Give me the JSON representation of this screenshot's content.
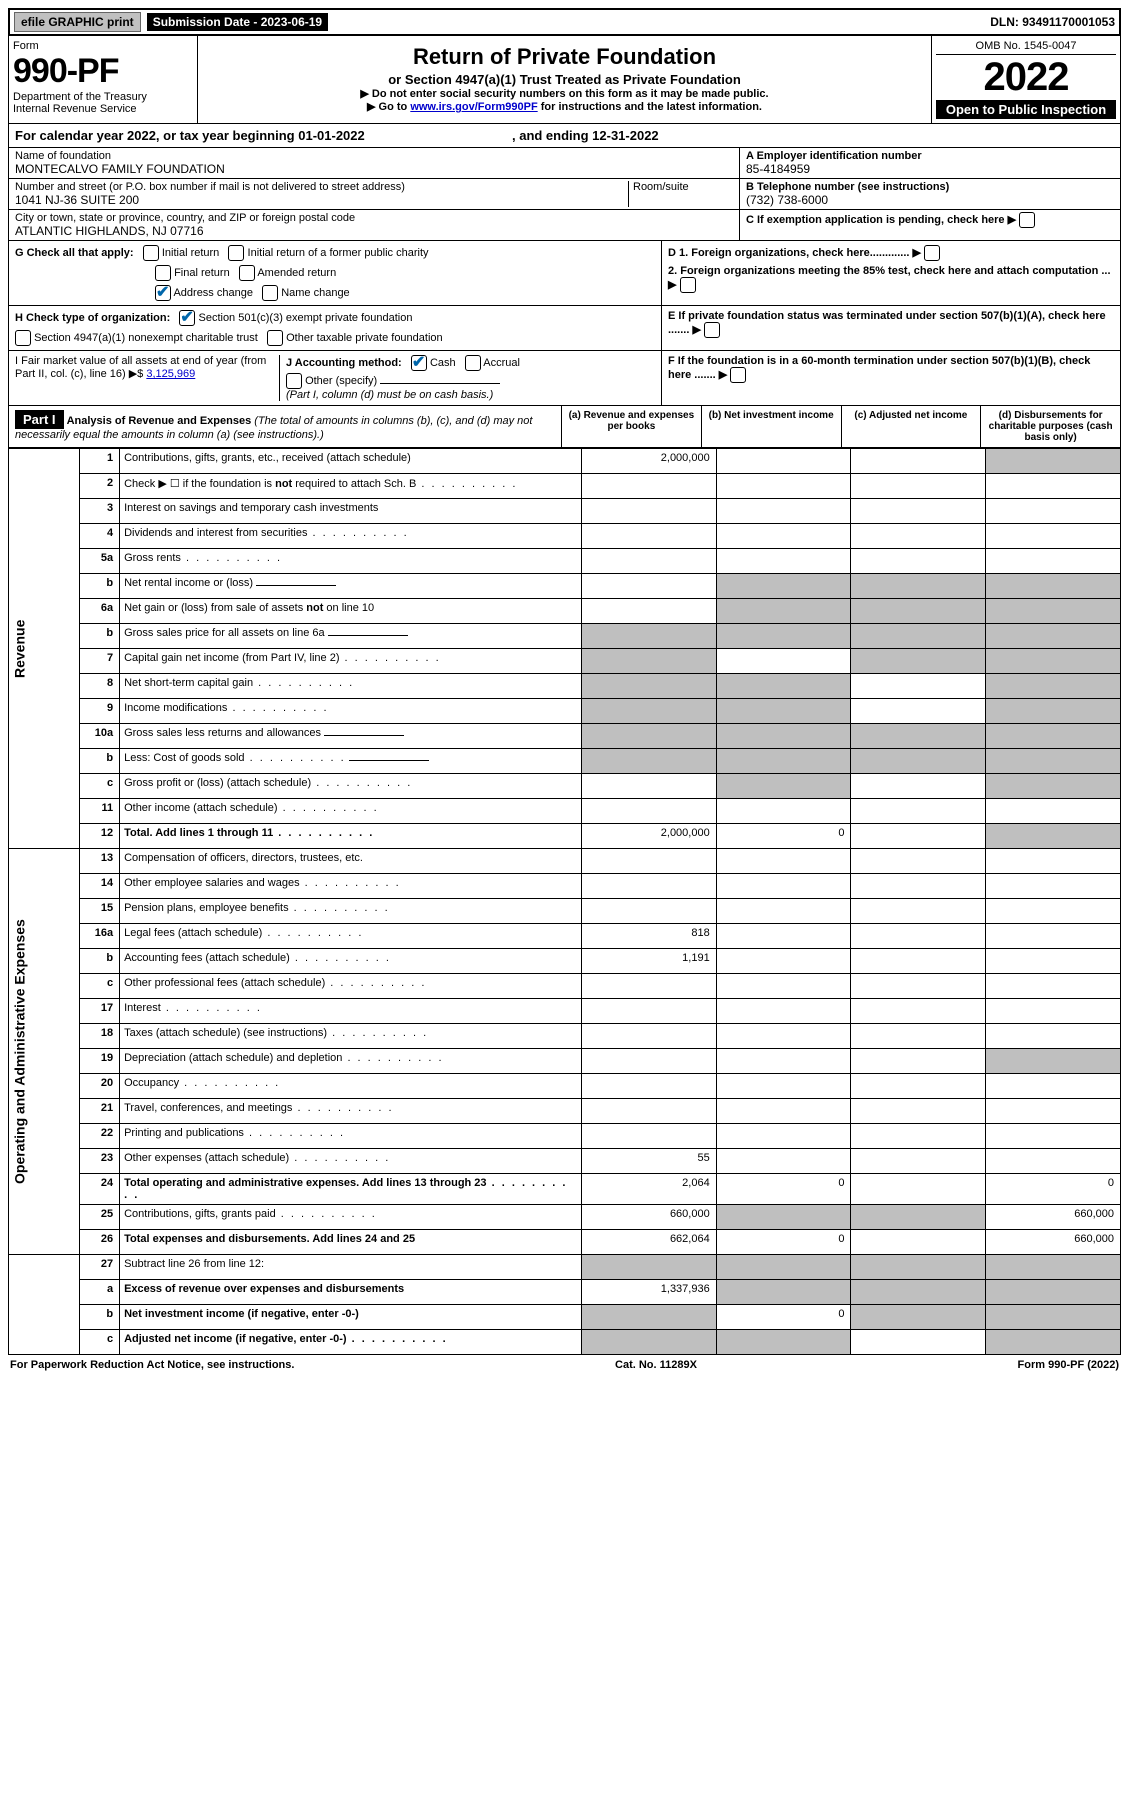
{
  "top": {
    "efile": "efile GRAPHIC print",
    "submission_label": "Submission Date - 2023-06-19",
    "dln": "DLN: 93491170001053"
  },
  "header": {
    "form_word": "Form",
    "form_num": "990-PF",
    "dept": "Department of the Treasury",
    "irs": "Internal Revenue Service",
    "title": "Return of Private Foundation",
    "subtitle": "or Section 4947(a)(1) Trust Treated as Private Foundation",
    "instr1": "▶ Do not enter social security numbers on this form as it may be made public.",
    "instr2_pre": "▶ Go to ",
    "instr2_link": "www.irs.gov/Form990PF",
    "instr2_post": " for instructions and the latest information.",
    "omb": "OMB No. 1545-0047",
    "year": "2022",
    "open": "Open to Public Inspection"
  },
  "calyear": {
    "text_pre": "For calendar year 2022, or tax year beginning ",
    "begin": "01-01-2022",
    "mid": ", and ending ",
    "end": "12-31-2022"
  },
  "meta": {
    "name_label": "Name of foundation",
    "name": "MONTECALVO FAMILY FOUNDATION",
    "addr_label": "Number and street (or P.O. box number if mail is not delivered to street address)",
    "addr": "1041 NJ-36 SUITE 200",
    "room_label": "Room/suite",
    "city_label": "City or town, state or province, country, and ZIP or foreign postal code",
    "city": "ATLANTIC HIGHLANDS, NJ  07716",
    "ein_label": "A Employer identification number",
    "ein": "85-4184959",
    "tel_label": "B Telephone number (see instructions)",
    "tel": "(732) 738-6000",
    "c_label": "C If exemption application is pending, check here",
    "d1": "D 1. Foreign organizations, check here.............",
    "d2": "2. Foreign organizations meeting the 85% test, check here and attach computation ...",
    "e": "E  If private foundation status was terminated under section 507(b)(1)(A), check here .......",
    "f": "F  If the foundation is in a 60-month termination under section 507(b)(1)(B), check here .......",
    "g_label": "G Check all that apply:",
    "g_initial": "Initial return",
    "g_initial_former": "Initial return of a former public charity",
    "g_final": "Final return",
    "g_amended": "Amended return",
    "g_addr_change": "Address change",
    "g_name_change": "Name change",
    "h_label": "H Check type of organization:",
    "h_501c3": "Section 501(c)(3) exempt private foundation",
    "h_4947": "Section 4947(a)(1) nonexempt charitable trust",
    "h_other_tax": "Other taxable private foundation",
    "i_label": "I Fair market value of all assets at end of year (from Part II, col. (c), line 16) ▶$",
    "i_val": "3,125,969",
    "j_label": "J Accounting method:",
    "j_cash": "Cash",
    "j_accrual": "Accrual",
    "j_other": "Other (specify)",
    "j_note": "(Part I, column (d) must be on cash basis.)"
  },
  "part1": {
    "label": "Part I",
    "title": "Analysis of Revenue and Expenses",
    "note": "(The total of amounts in columns (b), (c), and (d) may not necessarily equal the amounts in column (a) (see instructions).)",
    "cols": {
      "a": "(a) Revenue and expenses per books",
      "b": "(b) Net investment income",
      "c": "(c) Adjusted net income",
      "d": "(d) Disbursements for charitable purposes (cash basis only)"
    }
  },
  "sections": {
    "revenue": "Revenue",
    "expenses": "Operating and Administrative Expenses"
  },
  "lines": [
    {
      "n": "1",
      "d": "Contributions, gifts, grants, etc., received (attach schedule)",
      "a": "2,000,000",
      "grey_d": true
    },
    {
      "n": "2",
      "d": "Check ▶ ☐ if the foundation is not required to attach Sch. B",
      "dots": true,
      "grey_all": false,
      "no_cols": true
    },
    {
      "n": "3",
      "d": "Interest on savings and temporary cash investments"
    },
    {
      "n": "4",
      "d": "Dividends and interest from securities",
      "dots": true
    },
    {
      "n": "5a",
      "d": "Gross rents",
      "dots": true
    },
    {
      "n": "b",
      "d": "Net rental income or (loss)",
      "nested_line": true,
      "grey_bcd": true
    },
    {
      "n": "6a",
      "d": "Net gain or (loss) from sale of assets not on line 10",
      "grey_bcd": true
    },
    {
      "n": "b",
      "d": "Gross sales price for all assets on line 6a",
      "nested_line": true,
      "grey_all_cols": true
    },
    {
      "n": "7",
      "d": "Capital gain net income (from Part IV, line 2)",
      "dots": true,
      "grey_a": true,
      "grey_cd": true
    },
    {
      "n": "8",
      "d": "Net short-term capital gain",
      "dots": true,
      "grey_ab": true,
      "grey_d": true
    },
    {
      "n": "9",
      "d": "Income modifications",
      "dots": true,
      "grey_ab": true,
      "grey_d": true
    },
    {
      "n": "10a",
      "d": "Gross sales less returns and allowances",
      "nested_line": true,
      "grey_all_cols": true
    },
    {
      "n": "b",
      "d": "Less: Cost of goods sold",
      "dots": true,
      "nested_line": true,
      "grey_all_cols": true
    },
    {
      "n": "c",
      "d": "Gross profit or (loss) (attach schedule)",
      "dots": true,
      "grey_b": true,
      "grey_d": true
    },
    {
      "n": "11",
      "d": "Other income (attach schedule)",
      "dots": true
    },
    {
      "n": "12",
      "d": "Total. Add lines 1 through 11",
      "dots": true,
      "bold": true,
      "a": "2,000,000",
      "b": "0",
      "grey_d": true
    }
  ],
  "exp_lines": [
    {
      "n": "13",
      "d": "Compensation of officers, directors, trustees, etc."
    },
    {
      "n": "14",
      "d": "Other employee salaries and wages",
      "dots": true
    },
    {
      "n": "15",
      "d": "Pension plans, employee benefits",
      "dots": true
    },
    {
      "n": "16a",
      "d": "Legal fees (attach schedule)",
      "dots": true,
      "a": "818"
    },
    {
      "n": "b",
      "d": "Accounting fees (attach schedule)",
      "dots": true,
      "a": "1,191"
    },
    {
      "n": "c",
      "d": "Other professional fees (attach schedule)",
      "dots": true
    },
    {
      "n": "17",
      "d": "Interest",
      "dots": true
    },
    {
      "n": "18",
      "d": "Taxes (attach schedule) (see instructions)",
      "dots": true
    },
    {
      "n": "19",
      "d": "Depreciation (attach schedule) and depletion",
      "dots": true,
      "grey_d": true
    },
    {
      "n": "20",
      "d": "Occupancy",
      "dots": true
    },
    {
      "n": "21",
      "d": "Travel, conferences, and meetings",
      "dots": true
    },
    {
      "n": "22",
      "d": "Printing and publications",
      "dots": true
    },
    {
      "n": "23",
      "d": "Other expenses (attach schedule)",
      "dots": true,
      "a": "55"
    },
    {
      "n": "24",
      "d": "Total operating and administrative expenses. Add lines 13 through 23",
      "dots": true,
      "bold": true,
      "a": "2,064",
      "b": "0",
      "dd": "0"
    },
    {
      "n": "25",
      "d": "Contributions, gifts, grants paid",
      "dots": true,
      "a": "660,000",
      "grey_bc": true,
      "dd": "660,000"
    },
    {
      "n": "26",
      "d": "Total expenses and disbursements. Add lines 24 and 25",
      "bold": true,
      "a": "662,064",
      "b": "0",
      "dd": "660,000"
    }
  ],
  "net_lines": [
    {
      "n": "27",
      "d": "Subtract line 26 from line 12:",
      "grey_all_cols": true
    },
    {
      "n": "a",
      "d": "Excess of revenue over expenses and disbursements",
      "bold": true,
      "a": "1,337,936",
      "grey_bcd": true
    },
    {
      "n": "b",
      "d": "Net investment income (if negative, enter -0-)",
      "bold": true,
      "grey_a": true,
      "b": "0",
      "grey_cd": true
    },
    {
      "n": "c",
      "d": "Adjusted net income (if negative, enter -0-)",
      "bold": true,
      "dots": true,
      "grey_ab": true,
      "grey_d": true
    }
  ],
  "footer": {
    "left": "For Paperwork Reduction Act Notice, see instructions.",
    "mid": "Cat. No. 11289X",
    "right": "Form 990-PF (2022)"
  }
}
